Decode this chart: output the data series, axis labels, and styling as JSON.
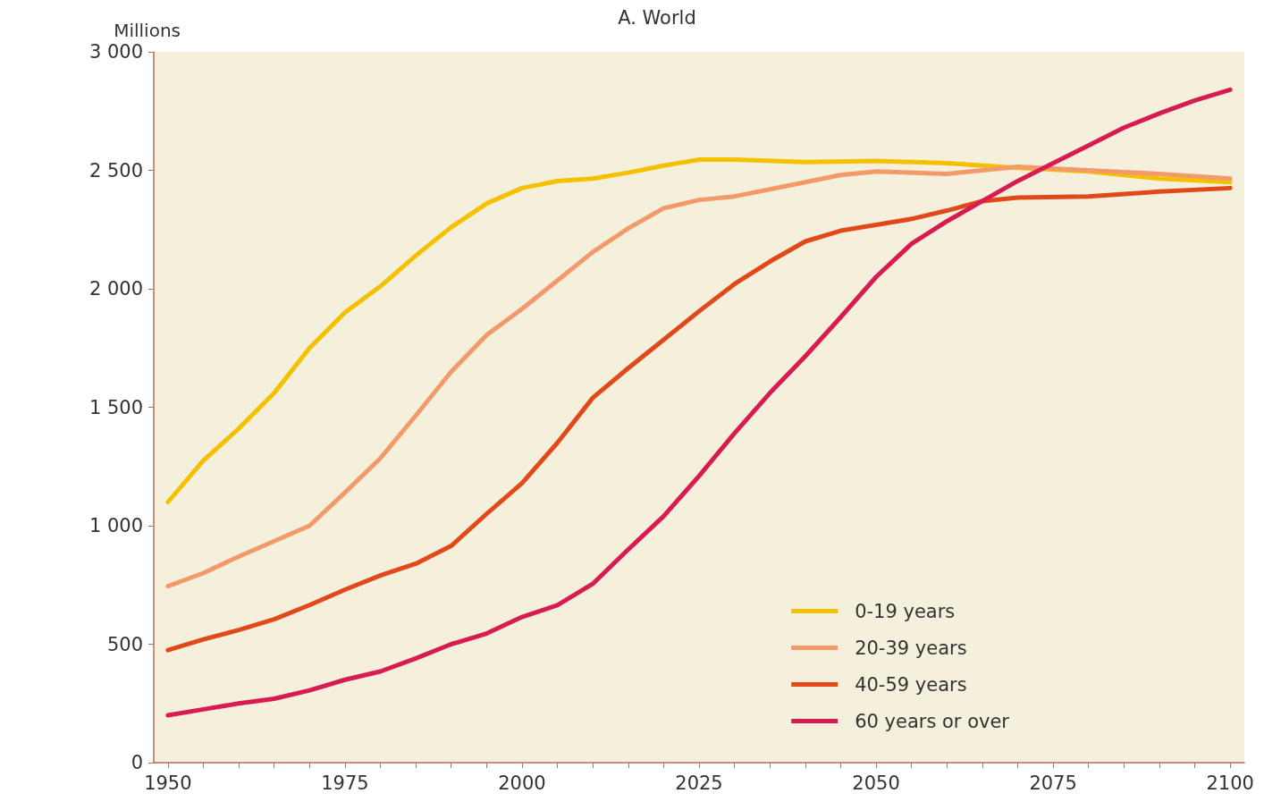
{
  "chart_data": {
    "type": "line",
    "title": "A. World",
    "ylabel": "Millions",
    "x": [
      1950,
      1955,
      1960,
      1965,
      1970,
      1975,
      1980,
      1985,
      1990,
      1995,
      2000,
      2005,
      2010,
      2015,
      2020,
      2025,
      2030,
      2035,
      2040,
      2045,
      2050,
      2055,
      2060,
      2065,
      2070,
      2075,
      2080,
      2085,
      2090,
      2095,
      2100
    ],
    "series": [
      {
        "name": "0-19 years",
        "color": "#f5c000",
        "x": [
          1950,
          1955,
          1960,
          1965,
          1970,
          1975,
          1980,
          1985,
          1990,
          1995,
          2000,
          2005,
          2010,
          2015,
          2020,
          2025,
          2030,
          2040,
          2050,
          2060,
          2070,
          2080,
          2090,
          2100
        ],
        "values": [
          1100,
          1275,
          1410,
          1560,
          1750,
          1900,
          2010,
          2140,
          2260,
          2360,
          2425,
          2455,
          2465,
          2490,
          2520,
          2545,
          2545,
          2535,
          2540,
          2530,
          2510,
          2495,
          2465,
          2450
        ]
      },
      {
        "name": "20-39 years",
        "color": "#f39a6b",
        "x": [
          1950,
          1955,
          1960,
          1965,
          1970,
          1975,
          1980,
          1985,
          1990,
          1995,
          2000,
          2005,
          2010,
          2015,
          2020,
          2025,
          2030,
          2035,
          2040,
          2045,
          2050,
          2060,
          2070,
          2080,
          2090,
          2100
        ],
        "values": [
          745,
          800,
          870,
          935,
          1000,
          1140,
          1285,
          1465,
          1650,
          1805,
          1915,
          2035,
          2155,
          2255,
          2340,
          2375,
          2390,
          2420,
          2450,
          2480,
          2495,
          2485,
          2515,
          2500,
          2485,
          2465
        ]
      },
      {
        "name": "40-59 years",
        "color": "#e2491a",
        "x": [
          1950,
          1955,
          1960,
          1965,
          1970,
          1975,
          1980,
          1985,
          1990,
          1995,
          2000,
          2005,
          2010,
          2015,
          2020,
          2025,
          2030,
          2035,
          2040,
          2045,
          2050,
          2055,
          2060,
          2065,
          2070,
          2080,
          2090,
          2100
        ],
        "values": [
          475,
          520,
          560,
          605,
          665,
          730,
          790,
          840,
          915,
          1050,
          1180,
          1350,
          1540,
          1665,
          1785,
          1905,
          2020,
          2115,
          2200,
          2245,
          2270,
          2295,
          2330,
          2370,
          2385,
          2390,
          2410,
          2425
        ]
      },
      {
        "name": "60 years or over",
        "color": "#d81b50",
        "values": [
          200,
          225,
          250,
          270,
          305,
          350,
          385,
          440,
          500,
          545,
          615,
          665,
          755,
          900,
          1040,
          1210,
          1390,
          1560,
          1715,
          1880,
          2050,
          2190,
          2285,
          2370,
          2455,
          2530,
          2605,
          2680,
          2740,
          2795,
          2840
        ]
      }
    ],
    "xlim": [
      1948,
      2102
    ],
    "xticks": [
      1950,
      {
        "value": 1955,
        "label": null
      },
      {
        "value": 1960,
        "label": null
      },
      {
        "value": 1965,
        "label": null
      },
      {
        "value": 1970,
        "label": null
      },
      1975,
      {
        "value": 1980,
        "label": null
      },
      {
        "value": 1985,
        "label": null
      },
      {
        "value": 1990,
        "label": null
      },
      {
        "value": 1995,
        "label": null
      },
      2000,
      {
        "value": 2005,
        "label": null
      },
      {
        "value": 2010,
        "label": null
      },
      {
        "value": 2015,
        "label": null
      },
      {
        "value": 2020,
        "label": null
      },
      2025,
      {
        "value": 2030,
        "label": null
      },
      {
        "value": 2035,
        "label": null
      },
      {
        "value": 2040,
        "label": null
      },
      {
        "value": 2045,
        "label": null
      },
      2050,
      {
        "value": 2055,
        "label": null
      },
      {
        "value": 2060,
        "label": null
      },
      {
        "value": 2065,
        "label": null
      },
      {
        "value": 2070,
        "label": null
      },
      2075,
      {
        "value": 2080,
        "label": null
      },
      {
        "value": 2085,
        "label": null
      },
      {
        "value": 2090,
        "label": null
      },
      {
        "value": 2095,
        "label": null
      },
      2100
    ],
    "ylim": [
      0,
      3000
    ],
    "yticks": [
      0,
      500,
      {
        "value": 1000,
        "label": "1 000"
      },
      {
        "value": 1500,
        "label": "1 500"
      },
      {
        "value": 2000,
        "label": "2 000"
      },
      {
        "value": 2500,
        "label": "2 500"
      },
      {
        "value": 3000,
        "label": "3 000"
      }
    ],
    "grid": false,
    "legend": "bottom right",
    "marker": "none",
    "line_style": "solid"
  }
}
